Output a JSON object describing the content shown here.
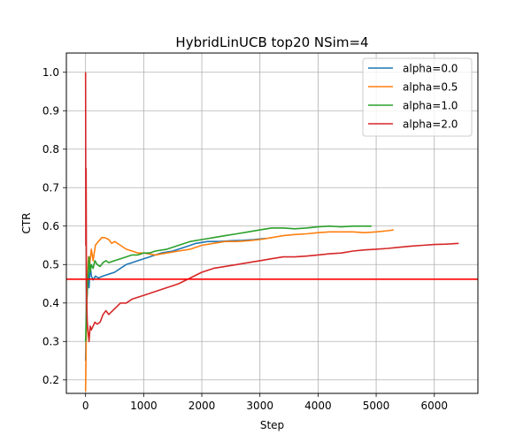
{
  "chart_data": {
    "type": "line",
    "title": "HybridLinUCB top20 NSim=4",
    "xlabel": "Step",
    "ylabel": "CTR",
    "xlim": [
      -330,
      6750
    ],
    "ylim": [
      0.165,
      1.05
    ],
    "xticks": [
      0,
      1000,
      2000,
      3000,
      4000,
      5000,
      6000
    ],
    "yticks": [
      0.2,
      0.3,
      0.4,
      0.5,
      0.6,
      0.7,
      0.8,
      0.9,
      1.0
    ],
    "xtick_labels": [
      "0",
      "1000",
      "2000",
      "3000",
      "4000",
      "5000",
      "6000"
    ],
    "ytick_labels": [
      "0.2",
      "0.3",
      "0.4",
      "0.5",
      "0.6",
      "0.7",
      "0.8",
      "0.9",
      "1.0"
    ],
    "grid": true,
    "legend_position": "top-right",
    "reference_line": {
      "y": 0.462,
      "color": "#ff0000"
    },
    "series": [
      {
        "name": "alpha=0.0",
        "color": "#1f77b4",
        "points": [
          [
            0,
            0.25
          ],
          [
            20,
            0.4
          ],
          [
            40,
            0.48
          ],
          [
            60,
            0.44
          ],
          [
            80,
            0.5
          ],
          [
            100,
            0.47
          ],
          [
            130,
            0.46
          ],
          [
            170,
            0.47
          ],
          [
            220,
            0.465
          ],
          [
            300,
            0.47
          ],
          [
            400,
            0.475
          ],
          [
            500,
            0.48
          ],
          [
            600,
            0.49
          ],
          [
            700,
            0.5
          ],
          [
            800,
            0.505
          ],
          [
            900,
            0.51
          ],
          [
            1000,
            0.515
          ],
          [
            1100,
            0.52
          ],
          [
            1200,
            0.525
          ],
          [
            1300,
            0.53
          ],
          [
            1500,
            0.535
          ],
          [
            1700,
            0.545
          ],
          [
            1900,
            0.555
          ],
          [
            2100,
            0.56
          ],
          [
            2300,
            0.56
          ],
          [
            2500,
            0.562
          ],
          [
            2700,
            0.563
          ],
          [
            2900,
            0.565
          ],
          [
            3100,
            0.568
          ]
        ]
      },
      {
        "name": "alpha=0.5",
        "color": "#ff7f0e",
        "points": [
          [
            0,
            0.17
          ],
          [
            15,
            0.35
          ],
          [
            30,
            0.45
          ],
          [
            50,
            0.52
          ],
          [
            70,
            0.5
          ],
          [
            100,
            0.54
          ],
          [
            130,
            0.51
          ],
          [
            170,
            0.55
          ],
          [
            220,
            0.56
          ],
          [
            280,
            0.57
          ],
          [
            330,
            0.57
          ],
          [
            400,
            0.565
          ],
          [
            450,
            0.555
          ],
          [
            500,
            0.56
          ],
          [
            600,
            0.55
          ],
          [
            700,
            0.54
          ],
          [
            800,
            0.535
          ],
          [
            900,
            0.53
          ],
          [
            1000,
            0.53
          ],
          [
            1200,
            0.525
          ],
          [
            1400,
            0.53
          ],
          [
            1600,
            0.535
          ],
          [
            1800,
            0.54
          ],
          [
            2000,
            0.55
          ],
          [
            2200,
            0.555
          ],
          [
            2400,
            0.56
          ],
          [
            2600,
            0.56
          ],
          [
            2800,
            0.562
          ],
          [
            3000,
            0.565
          ],
          [
            3200,
            0.57
          ],
          [
            3400,
            0.575
          ],
          [
            3600,
            0.578
          ],
          [
            3800,
            0.58
          ],
          [
            4000,
            0.583
          ],
          [
            4200,
            0.585
          ],
          [
            4400,
            0.585
          ],
          [
            4600,
            0.585
          ],
          [
            4800,
            0.583
          ],
          [
            5000,
            0.585
          ],
          [
            5200,
            0.588
          ],
          [
            5300,
            0.59
          ]
        ]
      },
      {
        "name": "alpha=1.0",
        "color": "#2ca02c",
        "points": [
          [
            0,
            0.3
          ],
          [
            20,
            0.4
          ],
          [
            40,
            0.46
          ],
          [
            60,
            0.52
          ],
          [
            80,
            0.48
          ],
          [
            100,
            0.5
          ],
          [
            130,
            0.49
          ],
          [
            160,
            0.51
          ],
          [
            200,
            0.5
          ],
          [
            250,
            0.495
          ],
          [
            300,
            0.505
          ],
          [
            350,
            0.51
          ],
          [
            400,
            0.505
          ],
          [
            500,
            0.51
          ],
          [
            600,
            0.515
          ],
          [
            700,
            0.52
          ],
          [
            800,
            0.525
          ],
          [
            900,
            0.525
          ],
          [
            1000,
            0.53
          ],
          [
            1100,
            0.53
          ],
          [
            1200,
            0.535
          ],
          [
            1400,
            0.54
          ],
          [
            1600,
            0.55
          ],
          [
            1800,
            0.56
          ],
          [
            2000,
            0.565
          ],
          [
            2200,
            0.57
          ],
          [
            2400,
            0.575
          ],
          [
            2600,
            0.58
          ],
          [
            2800,
            0.585
          ],
          [
            3000,
            0.59
          ],
          [
            3200,
            0.595
          ],
          [
            3400,
            0.595
          ],
          [
            3600,
            0.593
          ],
          [
            3800,
            0.595
          ],
          [
            4000,
            0.598
          ],
          [
            4200,
            0.6
          ],
          [
            4400,
            0.598
          ],
          [
            4600,
            0.6
          ],
          [
            4800,
            0.6
          ],
          [
            4920,
            0.6
          ]
        ]
      },
      {
        "name": "alpha=2.0",
        "color": "#d62728",
        "points": [
          [
            0,
            1.0
          ],
          [
            5,
            0.55
          ],
          [
            10,
            0.75
          ],
          [
            15,
            0.45
          ],
          [
            20,
            0.4
          ],
          [
            30,
            0.35
          ],
          [
            40,
            0.33
          ],
          [
            60,
            0.3
          ],
          [
            80,
            0.34
          ],
          [
            100,
            0.33
          ],
          [
            130,
            0.34
          ],
          [
            160,
            0.35
          ],
          [
            200,
            0.345
          ],
          [
            250,
            0.35
          ],
          [
            300,
            0.37
          ],
          [
            350,
            0.38
          ],
          [
            400,
            0.37
          ],
          [
            500,
            0.385
          ],
          [
            600,
            0.4
          ],
          [
            700,
            0.4
          ],
          [
            800,
            0.41
          ],
          [
            900,
            0.415
          ],
          [
            1000,
            0.42
          ],
          [
            1200,
            0.43
          ],
          [
            1400,
            0.44
          ],
          [
            1600,
            0.45
          ],
          [
            1800,
            0.465
          ],
          [
            2000,
            0.48
          ],
          [
            2200,
            0.49
          ],
          [
            2400,
            0.495
          ],
          [
            2600,
            0.5
          ],
          [
            2800,
            0.505
          ],
          [
            3000,
            0.51
          ],
          [
            3200,
            0.515
          ],
          [
            3400,
            0.52
          ],
          [
            3600,
            0.52
          ],
          [
            3800,
            0.522
          ],
          [
            4000,
            0.525
          ],
          [
            4200,
            0.528
          ],
          [
            4400,
            0.53
          ],
          [
            4600,
            0.535
          ],
          [
            4800,
            0.538
          ],
          [
            5000,
            0.54
          ],
          [
            5200,
            0.542
          ],
          [
            5400,
            0.545
          ],
          [
            5600,
            0.548
          ],
          [
            5800,
            0.55
          ],
          [
            6000,
            0.552
          ],
          [
            6200,
            0.553
          ],
          [
            6420,
            0.555
          ]
        ]
      }
    ]
  }
}
